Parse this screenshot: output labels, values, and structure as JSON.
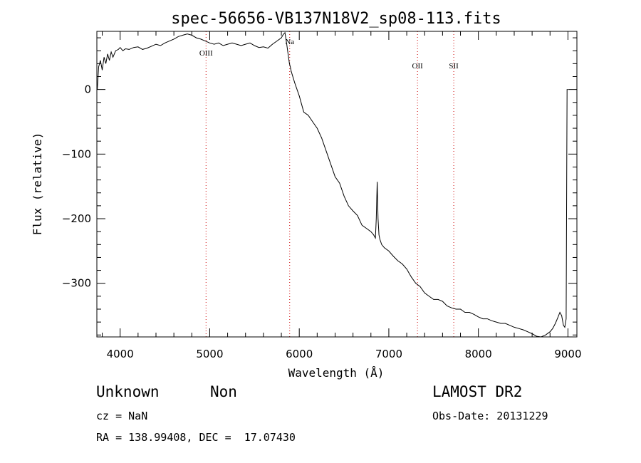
{
  "chart_data": {
    "type": "line",
    "title": "spec-56656-VB137N18V2_sp08-113.fits",
    "xlabel": "Wavelength (Å)",
    "ylabel": "Flux (relative)",
    "xlim": [
      3740,
      9100
    ],
    "ylim": [
      -383,
      90
    ],
    "x_ticks": [
      4000,
      5000,
      6000,
      7000,
      8000,
      9000
    ],
    "y_ticks": [
      0,
      -100,
      -200,
      -300
    ],
    "grid": false,
    "line_color": "#000000",
    "marker_color": "#cc0000",
    "spectral_lines": [
      {
        "name": "OIII",
        "wavelength": 4959
      },
      {
        "name": "Na",
        "wavelength": 5893
      },
      {
        "name": "OII",
        "wavelength": 7320
      },
      {
        "name": "SII",
        "wavelength": 7725
      }
    ],
    "series": [
      {
        "x": [
          3745,
          3760,
          3780,
          3800,
          3820,
          3840,
          3860,
          3880,
          3900,
          3920,
          3950,
          3980,
          4000,
          4030,
          4060,
          4100,
          4150,
          4200,
          4250,
          4300,
          4350,
          4400,
          4450,
          4500,
          4550,
          4600,
          4650,
          4700,
          4750,
          4800,
          4850,
          4900,
          4950,
          5000,
          5050,
          5100,
          5150,
          5200,
          5250,
          5300,
          5350,
          5400,
          5450,
          5500,
          5550,
          5600,
          5650,
          5700,
          5750,
          5800,
          5820,
          5840,
          5860,
          5880,
          5890,
          5900,
          5910,
          5950,
          6000,
          6050,
          6100,
          6150,
          6200,
          6250,
          6300,
          6350,
          6400,
          6450,
          6500,
          6550,
          6600,
          6650,
          6700,
          6750,
          6800,
          6830,
          6850,
          6860,
          6870,
          6880,
          6890,
          6900,
          6920,
          6950,
          7000,
          7050,
          7100,
          7150,
          7200,
          7250,
          7300,
          7350,
          7400,
          7450,
          7500,
          7550,
          7600,
          7650,
          7700,
          7750,
          7800,
          7850,
          7900,
          7950,
          8000,
          8050,
          8100,
          8150,
          8200,
          8250,
          8300,
          8350,
          8400,
          8450,
          8500,
          8550,
          8600,
          8650,
          8700,
          8750,
          8800,
          8830,
          8860,
          8890,
          8910,
          8930,
          8950,
          8965,
          8980,
          8990,
          9000
        ],
        "values": [
          0,
          35,
          45,
          30,
          50,
          40,
          55,
          45,
          58,
          50,
          60,
          62,
          65,
          60,
          63,
          62,
          65,
          66,
          62,
          64,
          67,
          70,
          68,
          72,
          75,
          78,
          82,
          84,
          86,
          84,
          80,
          78,
          75,
          72,
          70,
          72,
          68,
          70,
          72,
          70,
          68,
          70,
          72,
          68,
          65,
          66,
          64,
          70,
          75,
          80,
          85,
          88,
          70,
          50,
          40,
          35,
          28,
          10,
          -10,
          -35,
          -40,
          -50,
          -60,
          -75,
          -95,
          -115,
          -135,
          -145,
          -165,
          -180,
          -188,
          -195,
          -210,
          -215,
          -220,
          -225,
          -230,
          -200,
          -143,
          -200,
          -225,
          -232,
          -240,
          -245,
          -250,
          -258,
          -265,
          -270,
          -278,
          -290,
          -300,
          -305,
          -315,
          -320,
          -325,
          -325,
          -328,
          -335,
          -338,
          -340,
          -340,
          -345,
          -345,
          -348,
          -352,
          -355,
          -355,
          -358,
          -360,
          -362,
          -362,
          -365,
          -368,
          -370,
          -372,
          -375,
          -378,
          -382,
          -383,
          -380,
          -375,
          -370,
          -362,
          -352,
          -345,
          -350,
          -365,
          -368,
          -355,
          0,
          0
        ]
      }
    ]
  },
  "info": {
    "object_class": "Unknown",
    "subclass": "Non",
    "survey": "LAMOST DR2",
    "cz": "cz = NaN",
    "obs_date": "Obs-Date: 20131229",
    "coords": "RA = 138.99408, DEC =  17.07430"
  }
}
